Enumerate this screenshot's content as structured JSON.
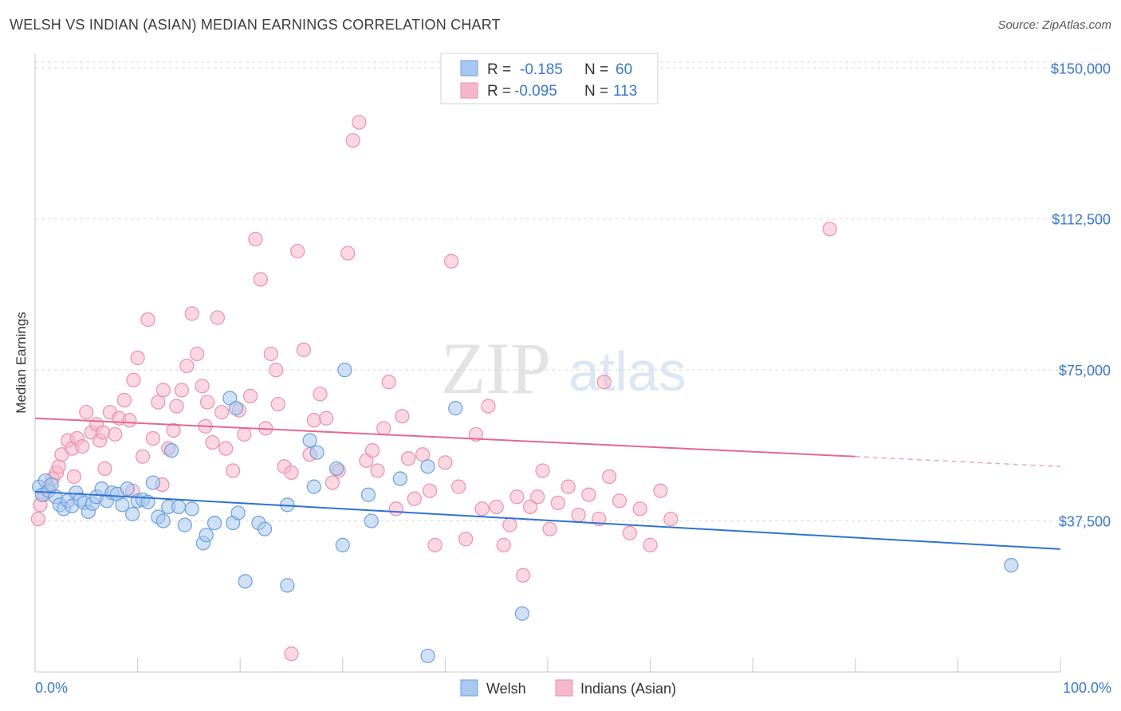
{
  "title": "WELSH VS INDIAN (ASIAN) MEDIAN EARNINGS CORRELATION CHART",
  "source": "Source: ZipAtlas.com",
  "watermark": {
    "part1": "ZIP",
    "part2": "atlas"
  },
  "colors": {
    "welsh_fill": "#a9c8ef",
    "welsh_stroke": "#6d9fdc",
    "welsh_line": "#2f73d0",
    "indian_fill": "#f5b8cb",
    "indian_stroke": "#ec8fad",
    "indian_line": "#e4688f",
    "axis_text": "#3a78c9",
    "grid": "#d8d8d8"
  },
  "legend": {
    "r_label": "R =",
    "n_label": "N =",
    "rows": [
      {
        "series": "Welsh",
        "r": "-0.185",
        "n": "60"
      },
      {
        "series": "Indians (Asian)",
        "r": "-0.095",
        "n": "113"
      }
    ]
  },
  "bottom_legend": [
    "Welsh",
    "Indians (Asian)"
  ],
  "chart_data": {
    "type": "scatter",
    "title": "WELSH VS INDIAN (ASIAN) MEDIAN EARNINGS CORRELATION CHART",
    "xlabel": "",
    "ylabel": "Median Earnings",
    "x_unit": "%",
    "xlim": [
      0,
      100
    ],
    "ylim": [
      0,
      155000
    ],
    "x_tick_labels": [
      "0.0%",
      "100.0%"
    ],
    "y_ticks": [
      37500,
      75000,
      112500,
      150000
    ],
    "y_tick_labels": [
      "$37,500",
      "$75,000",
      "$112,500",
      "$150,000"
    ],
    "grid": true,
    "legend_position": "top-center",
    "series": [
      {
        "name": "Welsh",
        "trend": {
          "x": [
            0,
            100
          ],
          "y": [
            44800,
            30500
          ],
          "r": -0.185,
          "n": 60
        },
        "points": [
          [
            0.4,
            46000
          ],
          [
            0.7,
            44000
          ],
          [
            1.0,
            47500
          ],
          [
            1.3,
            45000
          ],
          [
            1.6,
            46500
          ],
          [
            2.0,
            43500
          ],
          [
            2.4,
            41500
          ],
          [
            2.8,
            40500
          ],
          [
            3.2,
            42500
          ],
          [
            3.6,
            41200
          ],
          [
            4.0,
            44500
          ],
          [
            4.4,
            42800
          ],
          [
            4.8,
            42000
          ],
          [
            5.2,
            39800
          ],
          [
            5.6,
            41800
          ],
          [
            6.0,
            43500
          ],
          [
            6.5,
            45500
          ],
          [
            7.0,
            42500
          ],
          [
            7.5,
            44500
          ],
          [
            8.0,
            44200
          ],
          [
            8.5,
            41500
          ],
          [
            9.0,
            45500
          ],
          [
            9.5,
            39200
          ],
          [
            10.0,
            42500
          ],
          [
            10.5,
            42800
          ],
          [
            11.0,
            42200
          ],
          [
            11.5,
            47000
          ],
          [
            12.0,
            38500
          ],
          [
            12.5,
            37500
          ],
          [
            13.0,
            41000
          ],
          [
            13.3,
            55000
          ],
          [
            14.0,
            41000
          ],
          [
            14.6,
            36500
          ],
          [
            15.3,
            40500
          ],
          [
            16.4,
            32000
          ],
          [
            16.7,
            34000
          ],
          [
            17.5,
            37000
          ],
          [
            19.0,
            68000
          ],
          [
            19.6,
            65500
          ],
          [
            19.3,
            37000
          ],
          [
            19.8,
            39500
          ],
          [
            20.5,
            22500
          ],
          [
            21.8,
            37000
          ],
          [
            22.4,
            35500
          ],
          [
            24.6,
            21500
          ],
          [
            24.6,
            41500
          ],
          [
            26.8,
            57500
          ],
          [
            27.5,
            54500
          ],
          [
            27.2,
            46000
          ],
          [
            29.4,
            50500
          ],
          [
            30.0,
            31500
          ],
          [
            32.5,
            44000
          ],
          [
            32.8,
            37500
          ],
          [
            30.2,
            75000
          ],
          [
            35.6,
            48000
          ],
          [
            38.3,
            51000
          ],
          [
            38.3,
            4000
          ],
          [
            41.0,
            65500
          ],
          [
            47.5,
            14500
          ],
          [
            95.2,
            26500
          ]
        ]
      },
      {
        "name": "Indians (Asian)",
        "trend": {
          "x": [
            0,
            80
          ],
          "y": [
            63000,
            53500
          ],
          "x_dashed_to": 100,
          "y_dashed_to": 51000,
          "r": -0.095,
          "n": 113
        },
        "points": [
          [
            0.3,
            38000
          ],
          [
            0.5,
            41500
          ],
          [
            0.9,
            44000
          ],
          [
            1.3,
            46000
          ],
          [
            1.7,
            48000
          ],
          [
            2.1,
            49500
          ],
          [
            2.3,
            51000
          ],
          [
            2.6,
            54000
          ],
          [
            3.2,
            57500
          ],
          [
            3.6,
            55500
          ],
          [
            4.1,
            58000
          ],
          [
            4.6,
            56000
          ],
          [
            5.0,
            64500
          ],
          [
            5.5,
            59500
          ],
          [
            6.0,
            61500
          ],
          [
            6.3,
            57500
          ],
          [
            6.8,
            50500
          ],
          [
            7.3,
            64500
          ],
          [
            7.8,
            59000
          ],
          [
            8.2,
            63000
          ],
          [
            8.7,
            67500
          ],
          [
            9.2,
            62500
          ],
          [
            9.6,
            72500
          ],
          [
            10.0,
            78000
          ],
          [
            10.5,
            53500
          ],
          [
            11.0,
            87500
          ],
          [
            11.5,
            58000
          ],
          [
            12.0,
            67000
          ],
          [
            12.5,
            70000
          ],
          [
            13.0,
            55500
          ],
          [
            13.5,
            60000
          ],
          [
            13.8,
            66000
          ],
          [
            14.3,
            70000
          ],
          [
            14.8,
            76000
          ],
          [
            15.3,
            89000
          ],
          [
            15.8,
            79000
          ],
          [
            16.3,
            71000
          ],
          [
            16.8,
            67000
          ],
          [
            17.3,
            57000
          ],
          [
            17.8,
            88000
          ],
          [
            18.2,
            64500
          ],
          [
            18.6,
            55500
          ],
          [
            19.3,
            50000
          ],
          [
            19.9,
            65000
          ],
          [
            20.4,
            59000
          ],
          [
            21.0,
            68500
          ],
          [
            21.5,
            107500
          ],
          [
            22.0,
            97500
          ],
          [
            22.5,
            60500
          ],
          [
            23.0,
            79000
          ],
          [
            23.5,
            75000
          ],
          [
            23.7,
            66500
          ],
          [
            24.3,
            51000
          ],
          [
            25.0,
            49500
          ],
          [
            25.6,
            104500
          ],
          [
            26.2,
            80000
          ],
          [
            26.8,
            54000
          ],
          [
            27.2,
            62500
          ],
          [
            27.8,
            69000
          ],
          [
            28.4,
            63000
          ],
          [
            29.0,
            47000
          ],
          [
            29.6,
            50000
          ],
          [
            30.5,
            104000
          ],
          [
            31.0,
            132000
          ],
          [
            31.6,
            136500
          ],
          [
            32.3,
            52500
          ],
          [
            32.9,
            55000
          ],
          [
            33.4,
            50000
          ],
          [
            34.0,
            60500
          ],
          [
            34.5,
            72000
          ],
          [
            35.2,
            40500
          ],
          [
            35.8,
            63500
          ],
          [
            36.4,
            53000
          ],
          [
            37.0,
            43000
          ],
          [
            37.8,
            54000
          ],
          [
            38.5,
            45000
          ],
          [
            39.0,
            31500
          ],
          [
            40.0,
            52000
          ],
          [
            40.6,
            102000
          ],
          [
            41.3,
            46000
          ],
          [
            42.0,
            33000
          ],
          [
            43.0,
            59000
          ],
          [
            43.6,
            40500
          ],
          [
            44.2,
            66000
          ],
          [
            45.0,
            41000
          ],
          [
            45.7,
            31500
          ],
          [
            46.3,
            36500
          ],
          [
            47.0,
            43500
          ],
          [
            47.6,
            24000
          ],
          [
            48.3,
            41000
          ],
          [
            49.0,
            43500
          ],
          [
            49.5,
            50000
          ],
          [
            50.2,
            35500
          ],
          [
            51.0,
            42000
          ],
          [
            52.0,
            46000
          ],
          [
            53.0,
            39000
          ],
          [
            54.0,
            44000
          ],
          [
            55.0,
            38000
          ],
          [
            55.5,
            72000
          ],
          [
            56.0,
            48500
          ],
          [
            57.0,
            42500
          ],
          [
            58.0,
            34500
          ],
          [
            59.0,
            40500
          ],
          [
            60.0,
            31500
          ],
          [
            61.0,
            45000
          ],
          [
            62.0,
            38000
          ],
          [
            25.0,
            4500
          ],
          [
            3.8,
            48500
          ],
          [
            6.6,
            59500
          ],
          [
            9.5,
            45000
          ],
          [
            12.4,
            46500
          ],
          [
            77.5,
            110000
          ],
          [
            16.6,
            61000
          ]
        ]
      }
    ]
  }
}
